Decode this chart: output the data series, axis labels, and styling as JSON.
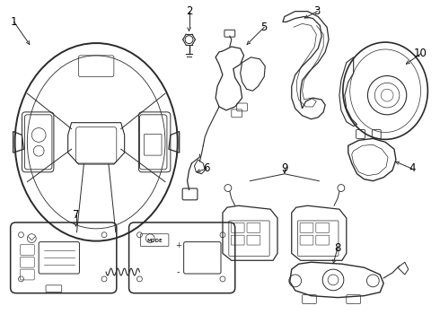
{
  "background_color": "#ffffff",
  "line_color": "#2a2a2a",
  "label_color": "#000000",
  "label_fontsize": 8.5,
  "figsize": [
    4.9,
    3.6
  ],
  "dpi": 100
}
